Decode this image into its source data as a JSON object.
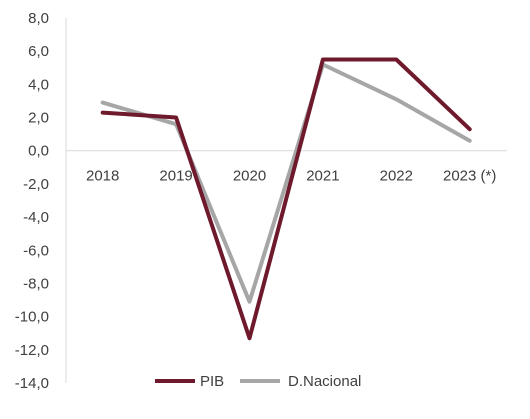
{
  "chart_data": {
    "type": "line",
    "categories": [
      "2018",
      "2019",
      "2020",
      "2021",
      "2022",
      "2023 (*)"
    ],
    "series": [
      {
        "name": "PIB",
        "values": [
          2.3,
          2.0,
          -11.3,
          5.5,
          5.5,
          1.3
        ],
        "color": "#6e1a2c"
      },
      {
        "name": "D.Nacional",
        "values": [
          2.9,
          1.6,
          -9.1,
          5.2,
          3.1,
          0.6
        ],
        "color": "#a6a6a6"
      }
    ],
    "y_ticks": [
      "8,0",
      "6,0",
      "4,0",
      "2,0",
      "0,0",
      "-2,0",
      "-4,0",
      "-6,0",
      "-8,0",
      "-10,0",
      "-12,0",
      "-14,0"
    ],
    "ylim": [
      -14,
      8
    ],
    "grid": false,
    "legend_position": "bottom"
  }
}
